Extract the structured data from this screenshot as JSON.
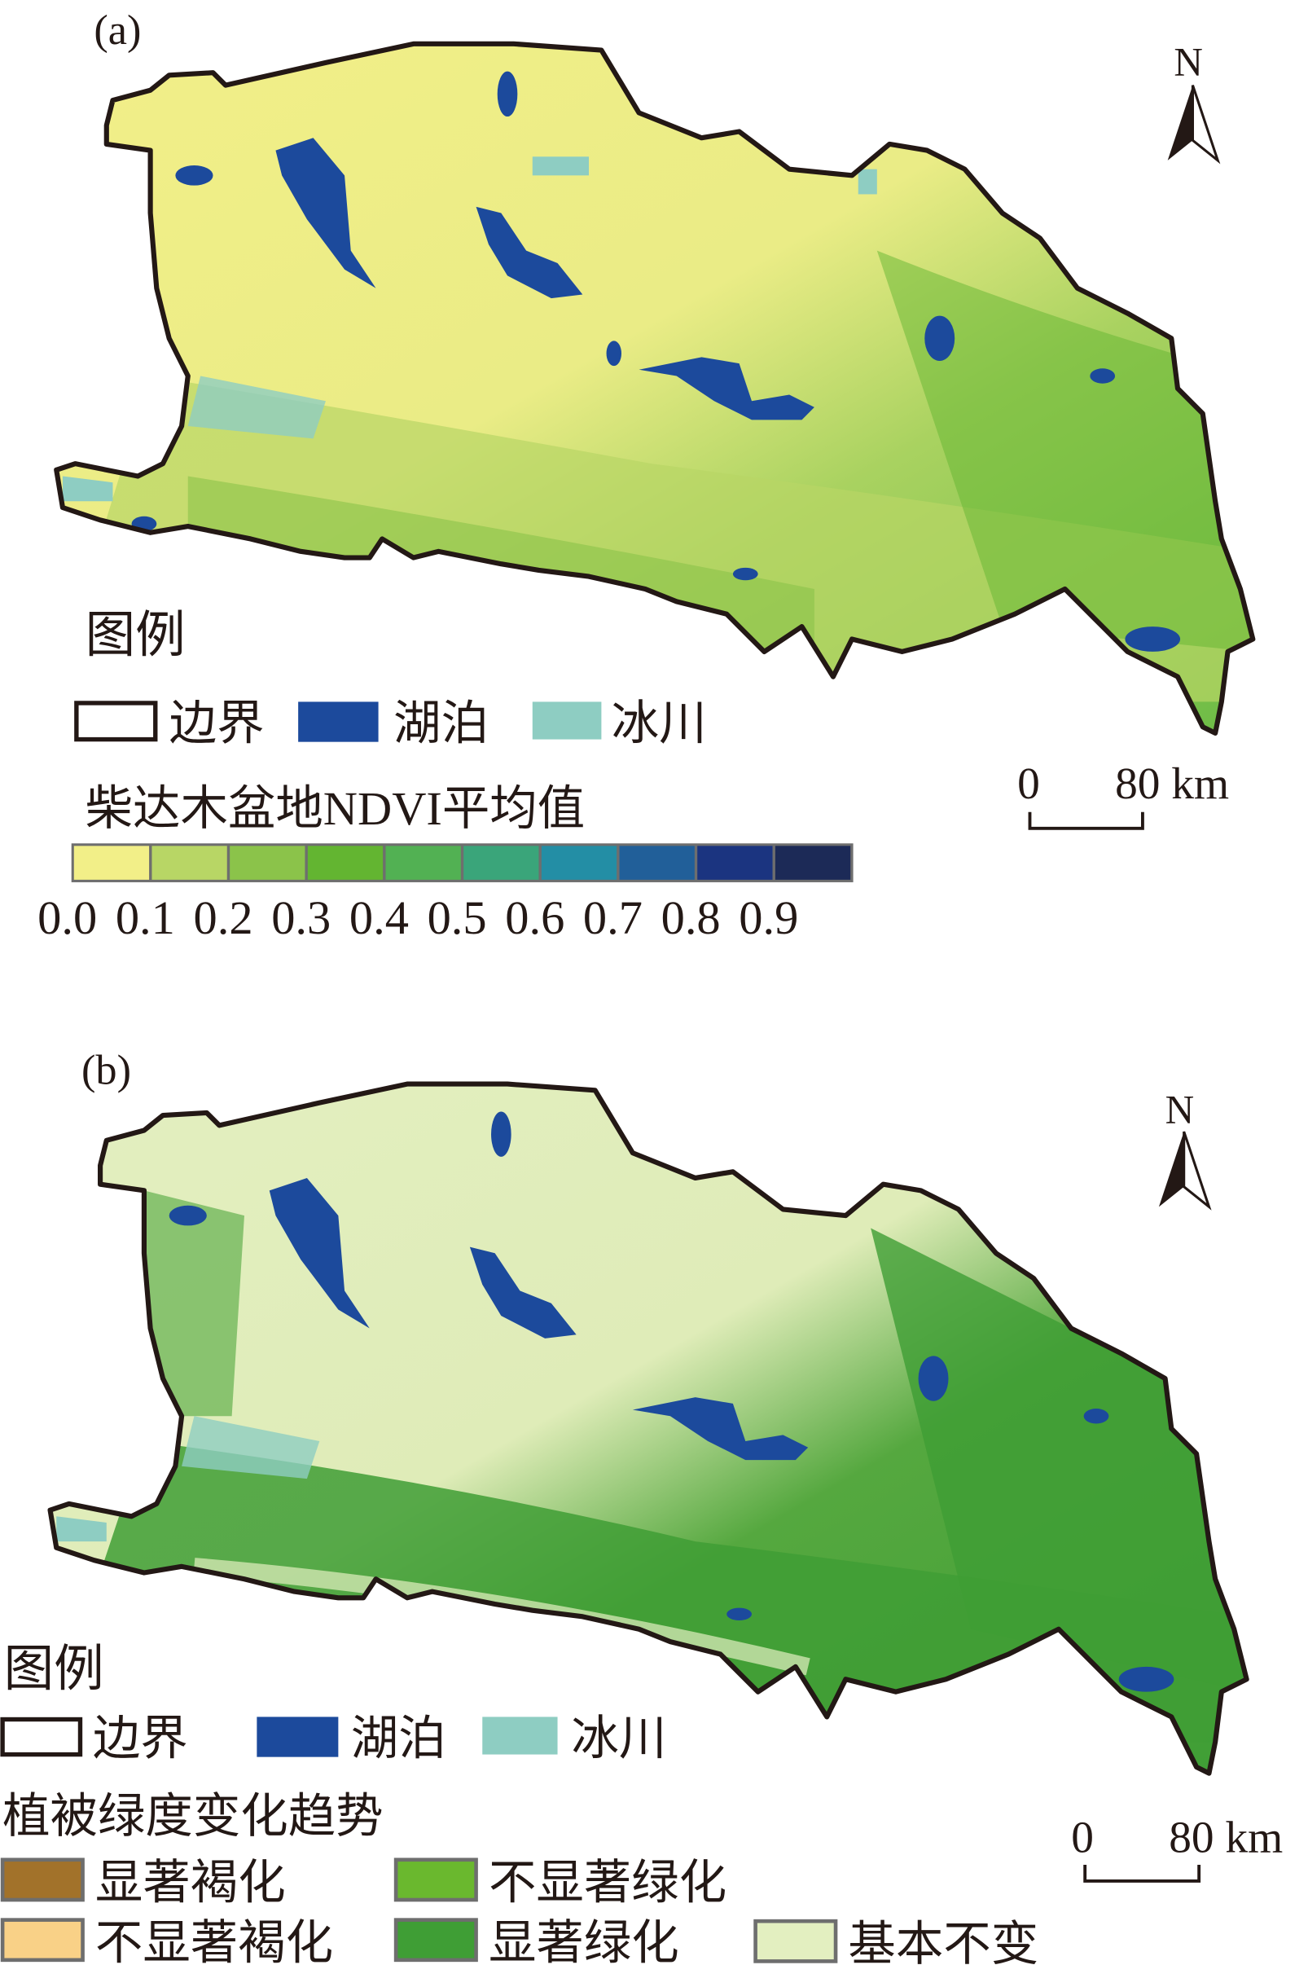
{
  "panels": [
    {
      "label": "(a)",
      "north": "N",
      "scale": {
        "zero": "0",
        "end": "80 km"
      },
      "legend": {
        "title": "图例",
        "base_items": [
          {
            "label": "边界",
            "color": "#ffffff"
          },
          {
            "label": "湖泊",
            "color": "#1c4a9c"
          },
          {
            "label": "冰川",
            "color": "#8ecdc2"
          }
        ],
        "ramp_title": "柴达木盆地NDVI平均值",
        "ramp_colors": [
          "#f2ef88",
          "#b8d665",
          "#8bc34a",
          "#63b531",
          "#52b153",
          "#3aa57a",
          "#238ea5",
          "#215f99",
          "#1b3480",
          "#1c2a57"
        ],
        "ramp_ticks": [
          "0.0",
          "0.1",
          "0.2",
          "0.3",
          "0.4",
          "0.5",
          "0.6",
          "0.7",
          "0.8",
          "0.9"
        ]
      }
    },
    {
      "label": "(b)",
      "north": "N",
      "scale": {
        "zero": "0",
        "end": "80 km"
      },
      "legend": {
        "title": "图例",
        "base_items": [
          {
            "label": "边界",
            "color": "#ffffff"
          },
          {
            "label": "湖泊",
            "color": "#1c4a9c"
          },
          {
            "label": "冰川",
            "color": "#8ecdc2"
          }
        ],
        "trend_title": "植被绿度变化趋势",
        "trend_items": [
          {
            "label": "显著褐化",
            "color": "#a2722a"
          },
          {
            "label": "不显著绿化",
            "color": "#6ab82e"
          },
          {
            "label": "不显著褐化",
            "color": "#f9d187"
          },
          {
            "label": "显著绿化",
            "color": "#3f9e35"
          },
          {
            "label": "基本不变",
            "color": "#e3efc0"
          }
        ]
      }
    }
  ]
}
